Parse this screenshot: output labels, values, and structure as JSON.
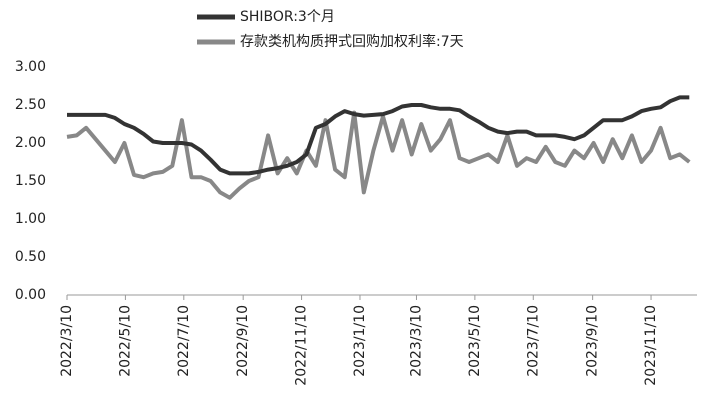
{
  "chart_data": {
    "type": "line",
    "x": [
      "2022/3/10",
      "2022/3/20",
      "2022/3/30",
      "2022/4/9",
      "2022/4/19",
      "2022/4/29",
      "2022/5/9",
      "2022/5/19",
      "2022/5/29",
      "2022/6/8",
      "2022/6/18",
      "2022/6/28",
      "2022/7/8",
      "2022/7/18",
      "2022/7/28",
      "2022/8/7",
      "2022/8/17",
      "2022/8/27",
      "2022/9/6",
      "2022/9/16",
      "2022/9/26",
      "2022/10/6",
      "2022/10/16",
      "2022/10/26",
      "2022/11/5",
      "2022/11/15",
      "2022/11/25",
      "2022/12/5",
      "2022/12/15",
      "2022/12/25",
      "2023/1/4",
      "2023/1/14",
      "2023/1/24",
      "2023/2/3",
      "2023/2/13",
      "2023/2/23",
      "2023/3/5",
      "2023/3/15",
      "2023/3/25",
      "2023/4/4",
      "2023/4/14",
      "2023/4/24",
      "2023/5/4",
      "2023/5/14",
      "2023/5/24",
      "2023/6/3",
      "2023/6/13",
      "2023/6/23",
      "2023/7/3",
      "2023/7/13",
      "2023/7/23",
      "2023/8/2",
      "2023/8/12",
      "2023/8/22",
      "2023/9/1",
      "2023/9/11",
      "2023/9/21",
      "2023/10/1",
      "2023/10/11",
      "2023/10/21",
      "2023/10/31",
      "2023/11/10",
      "2023/11/20",
      "2023/11/30",
      "2023/12/10",
      "2023/12/20"
    ],
    "series": [
      {
        "name": "SHIBOR:3个月",
        "color": "#333333",
        "values": [
          2.37,
          2.37,
          2.37,
          2.37,
          2.37,
          2.33,
          2.25,
          2.2,
          2.12,
          2.02,
          2.0,
          2.0,
          2.0,
          1.98,
          1.9,
          1.78,
          1.65,
          1.6,
          1.6,
          1.6,
          1.62,
          1.65,
          1.67,
          1.7,
          1.75,
          1.85,
          2.2,
          2.25,
          2.35,
          2.42,
          2.38,
          2.36,
          2.37,
          2.38,
          2.42,
          2.48,
          2.5,
          2.5,
          2.47,
          2.45,
          2.45,
          2.43,
          2.35,
          2.28,
          2.2,
          2.15,
          2.13,
          2.15,
          2.15,
          2.1,
          2.1,
          2.1,
          2.08,
          2.05,
          2.1,
          2.2,
          2.3,
          2.3,
          2.3,
          2.35,
          2.42,
          2.45,
          2.47,
          2.55,
          2.6,
          2.6
        ]
      },
      {
        "name": "存款类机构质押式回购加权利率:7天",
        "color": "#888888",
        "values": [
          2.08,
          2.1,
          2.2,
          2.05,
          1.9,
          1.75,
          2.0,
          1.58,
          1.55,
          1.6,
          1.62,
          1.7,
          2.3,
          1.55,
          1.55,
          1.5,
          1.35,
          1.28,
          1.4,
          1.5,
          1.55,
          2.1,
          1.6,
          1.8,
          1.6,
          1.9,
          1.7,
          2.3,
          1.65,
          1.55,
          2.4,
          1.35,
          1.9,
          2.35,
          1.9,
          2.3,
          1.85,
          2.25,
          1.9,
          2.05,
          2.3,
          1.8,
          1.75,
          1.8,
          1.85,
          1.75,
          2.1,
          1.7,
          1.8,
          1.75,
          1.95,
          1.75,
          1.7,
          1.9,
          1.8,
          2.0,
          1.75,
          2.05,
          1.8,
          2.1,
          1.75,
          1.9,
          2.2,
          1.8,
          1.85,
          1.75
        ]
      }
    ],
    "xlim": [
      "2022/3/10",
      "2023/12/28"
    ],
    "xticks": [
      "2022/3/10",
      "2022/5/10",
      "2022/7/10",
      "2022/9/10",
      "2022/11/10",
      "2023/1/10",
      "2023/3/10",
      "2023/5/10",
      "2023/7/10",
      "2023/9/10",
      "2023/11/10"
    ],
    "ylim": [
      0,
      3
    ],
    "yticks": [
      {
        "value": 0,
        "label": "0.00"
      },
      {
        "value": 0.5,
        "label": "0.50"
      },
      {
        "value": 1,
        "label": "1.00"
      },
      {
        "value": 1.5,
        "label": "1.50"
      },
      {
        "value": 2,
        "label": "2.00"
      },
      {
        "value": 2.5,
        "label": "2.50"
      },
      {
        "value": 3,
        "label": "3.00"
      }
    ]
  }
}
